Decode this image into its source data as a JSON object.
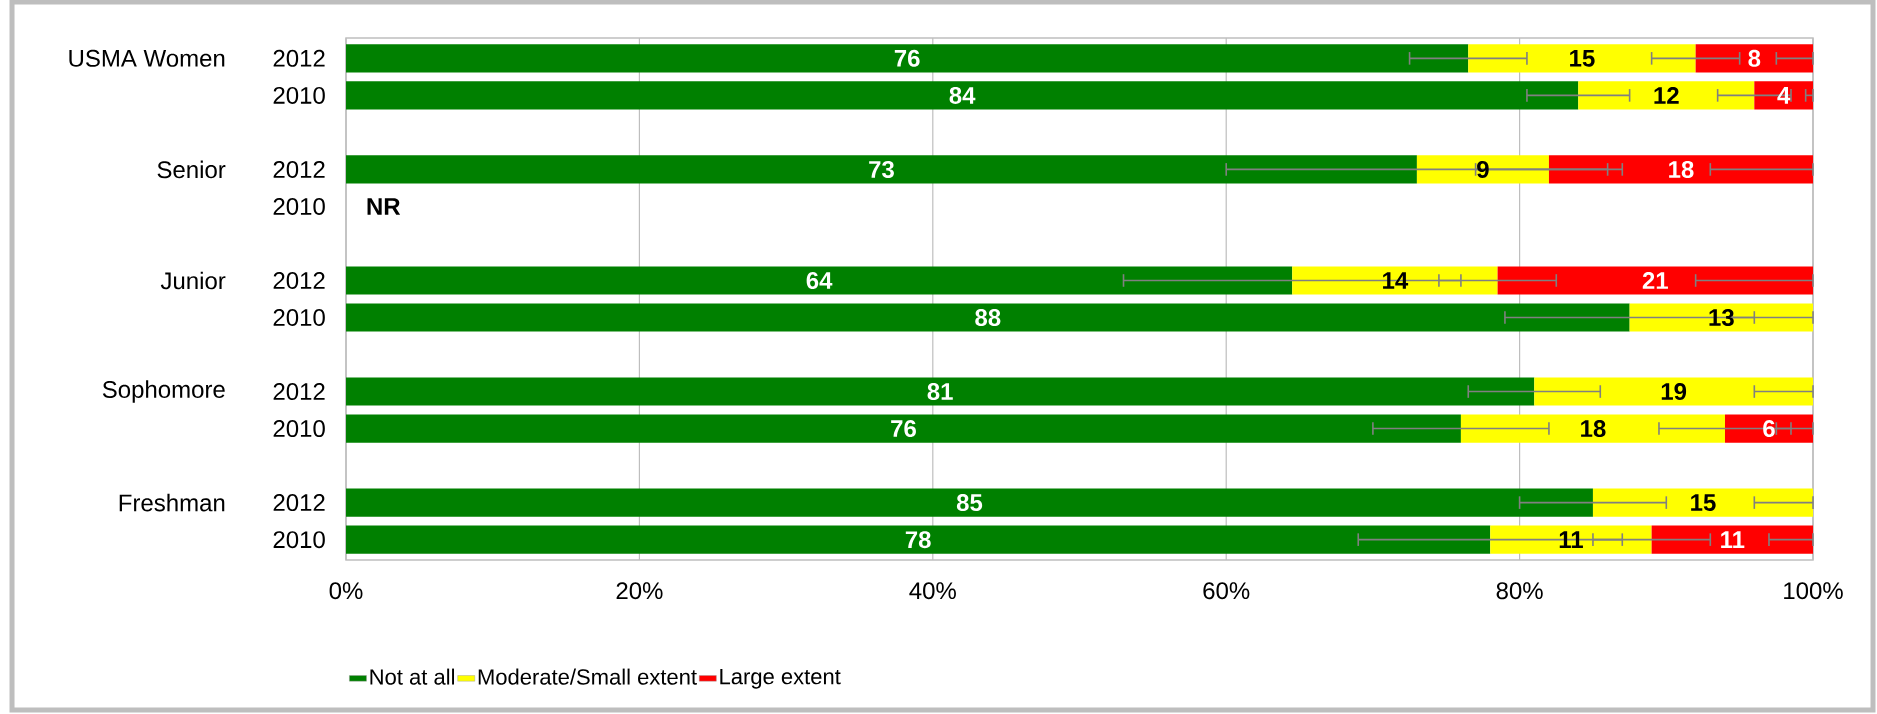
{
  "chart_data": {
    "type": "bar",
    "orientation": "horizontal",
    "stacked": true,
    "categories": [
      "2012",
      "2010",
      "2012",
      "2010",
      "2012",
      "2010",
      "2012",
      "2010",
      "2012",
      "2010"
    ],
    "annotations": [
      "USMA Women",
      "Senior",
      "Junior",
      "Sophomore",
      "Freshman"
    ],
    "series": [
      {
        "name": "Not at all",
        "color": "#008000",
        "values": [
          76.5,
          84,
          73,
          null,
          64.5,
          87.5,
          81,
          76,
          85,
          78
        ],
        "value_labels": [
          "76",
          "84",
          "73",
          "NR",
          "64",
          "88",
          "81",
          "76",
          "85",
          "78"
        ],
        "errors": [
          4,
          3.5,
          13,
          null,
          11.5,
          8.5,
          4.5,
          6,
          5,
          9
        ]
      },
      {
        "name": "Moderate/Small extent",
        "color": "#ffff00",
        "values": [
          15.5,
          12,
          9,
          null,
          14,
          12.5,
          19,
          18,
          15,
          11
        ],
        "value_labels": [
          "15",
          "12",
          "9",
          null,
          "14",
          "13",
          "19",
          "18",
          "15",
          "11"
        ],
        "errors": [
          3,
          2.5,
          5,
          null,
          4,
          [
            94.5,
            100
          ],
          [
            96,
            100
          ],
          4.5,
          [
            96,
            100
          ],
          4
        ]
      },
      {
        "name": "Large extent",
        "color": "#ff0000",
        "values": [
          8,
          4,
          18,
          null,
          21.5,
          null,
          null,
          6,
          null,
          11
        ],
        "value_labels": [
          "8",
          "4",
          "18",
          null,
          "21",
          null,
          null,
          "6",
          null,
          "11"
        ],
        "errors": [
          [
            97.5,
            100
          ],
          [
            99.5,
            100
          ],
          [
            93,
            100
          ],
          null,
          [
            92,
            100
          ],
          null,
          null,
          [
            97.5,
            100
          ],
          null,
          [
            97,
            100
          ]
        ]
      }
    ],
    "xlim": [
      0,
      100
    ],
    "xticks": [
      {
        "value": 0,
        "label": "0%"
      },
      {
        "value": 20,
        "label": "20%"
      },
      {
        "value": 40,
        "label": "40%"
      },
      {
        "value": 60,
        "label": "60%"
      },
      {
        "value": 80,
        "label": "80%"
      },
      {
        "value": 100,
        "label": "100%"
      }
    ],
    "grid": "x",
    "legend": "bottom"
  }
}
